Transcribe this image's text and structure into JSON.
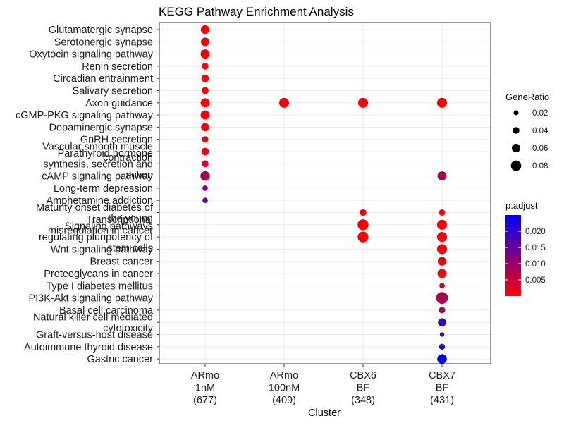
{
  "chart_data": {
    "type": "scatter",
    "title": "KEGG Pathway Enrichment Analysis",
    "xlabel": "Cluster",
    "clusters": [
      [
        "ARmo",
        "1nM",
        "(677)"
      ],
      [
        "ARmo",
        "100nM",
        "(409)"
      ],
      [
        "CBX6",
        "BF",
        "(348)"
      ],
      [
        "CBX7",
        "BF",
        "(431)"
      ]
    ],
    "pathways": [
      [
        "Glutamatergic synapse"
      ],
      [
        "Serotonergic synapse"
      ],
      [
        "Oxytocin signaling pathway"
      ],
      [
        "Renin secretion"
      ],
      [
        "Circadian entrainment"
      ],
      [
        "Salivary secretion"
      ],
      [
        "Axon guidance"
      ],
      [
        "cGMP-PKG signaling pathway"
      ],
      [
        "Dopaminergic synapse"
      ],
      [
        "GnRH secretion"
      ],
      [
        "Vascular smooth muscle",
        "contraction"
      ],
      [
        "Parathyroid hormone",
        "synthesis, secretion and",
        "action"
      ],
      [
        "cAMP signaling pathway"
      ],
      [
        "Long-term depression"
      ],
      [
        "Amphetamine addiction"
      ],
      [
        "Maturity onset diabetes of",
        "the young"
      ],
      [
        "Transcriptional",
        "misregulation in cancer"
      ],
      [
        "Signaling pathways",
        "regulating pluripotency of",
        "stem cells"
      ],
      [
        "Wnt signaling pathway"
      ],
      [
        "Breast cancer"
      ],
      [
        "Proteoglycans in cancer"
      ],
      [
        "Type I diabetes mellitus"
      ],
      [
        "PI3K-Akt signaling pathway"
      ],
      [
        "Basal cell carcinoma"
      ],
      [
        "Natural killer cell mediated",
        "cytotoxicity"
      ],
      [
        "Graft-versus-host disease"
      ],
      [
        "Autoimmune thyroid disease"
      ],
      [
        "Gastric cancer"
      ]
    ],
    "points": [
      {
        "cluster": 0,
        "pathway": 0,
        "gene_ratio": 0.06,
        "p_adjust": 0.0005
      },
      {
        "cluster": 0,
        "pathway": 1,
        "gene_ratio": 0.058,
        "p_adjust": 0.0005
      },
      {
        "cluster": 0,
        "pathway": 2,
        "gene_ratio": 0.065,
        "p_adjust": 0.0005
      },
      {
        "cluster": 0,
        "pathway": 3,
        "gene_ratio": 0.04,
        "p_adjust": 0.0005
      },
      {
        "cluster": 0,
        "pathway": 4,
        "gene_ratio": 0.048,
        "p_adjust": 0.0005
      },
      {
        "cluster": 0,
        "pathway": 5,
        "gene_ratio": 0.043,
        "p_adjust": 0.0005
      },
      {
        "cluster": 0,
        "pathway": 6,
        "gene_ratio": 0.065,
        "p_adjust": 0.0005
      },
      {
        "cluster": 0,
        "pathway": 7,
        "gene_ratio": 0.065,
        "p_adjust": 0.001
      },
      {
        "cluster": 0,
        "pathway": 8,
        "gene_ratio": 0.055,
        "p_adjust": 0.001
      },
      {
        "cluster": 0,
        "pathway": 9,
        "gene_ratio": 0.035,
        "p_adjust": 0.002
      },
      {
        "cluster": 0,
        "pathway": 10,
        "gene_ratio": 0.048,
        "p_adjust": 0.002
      },
      {
        "cluster": 0,
        "pathway": 11,
        "gene_ratio": 0.04,
        "p_adjust": 0.004
      },
      {
        "cluster": 0,
        "pathway": 12,
        "gene_ratio": 0.07,
        "p_adjust": 0.008
      },
      {
        "cluster": 0,
        "pathway": 13,
        "gene_ratio": 0.025,
        "p_adjust": 0.013
      },
      {
        "cluster": 0,
        "pathway": 14,
        "gene_ratio": 0.025,
        "p_adjust": 0.015
      },
      {
        "cluster": 1,
        "pathway": 6,
        "gene_ratio": 0.075,
        "p_adjust": 0.0005
      },
      {
        "cluster": 2,
        "pathway": 6,
        "gene_ratio": 0.075,
        "p_adjust": 0.0005
      },
      {
        "cluster": 2,
        "pathway": 15,
        "gene_ratio": 0.04,
        "p_adjust": 0.0005
      },
      {
        "cluster": 2,
        "pathway": 16,
        "gene_ratio": 0.085,
        "p_adjust": 0.0005
      },
      {
        "cluster": 2,
        "pathway": 17,
        "gene_ratio": 0.083,
        "p_adjust": 0.0005
      },
      {
        "cluster": 3,
        "pathway": 6,
        "gene_ratio": 0.075,
        "p_adjust": 0.0005
      },
      {
        "cluster": 3,
        "pathway": 12,
        "gene_ratio": 0.065,
        "p_adjust": 0.008
      },
      {
        "cluster": 3,
        "pathway": 15,
        "gene_ratio": 0.035,
        "p_adjust": 0.0005
      },
      {
        "cluster": 3,
        "pathway": 16,
        "gene_ratio": 0.075,
        "p_adjust": 0.0005
      },
      {
        "cluster": 3,
        "pathway": 17,
        "gene_ratio": 0.075,
        "p_adjust": 0.0005
      },
      {
        "cluster": 3,
        "pathway": 18,
        "gene_ratio": 0.075,
        "p_adjust": 0.0005
      },
      {
        "cluster": 3,
        "pathway": 19,
        "gene_ratio": 0.06,
        "p_adjust": 0.0005
      },
      {
        "cluster": 3,
        "pathway": 20,
        "gene_ratio": 0.065,
        "p_adjust": 0.0008
      },
      {
        "cluster": 3,
        "pathway": 21,
        "gene_ratio": 0.025,
        "p_adjust": 0.005
      },
      {
        "cluster": 3,
        "pathway": 22,
        "gene_ratio": 0.095,
        "p_adjust": 0.008
      },
      {
        "cluster": 3,
        "pathway": 23,
        "gene_ratio": 0.035,
        "p_adjust": 0.009
      },
      {
        "cluster": 3,
        "pathway": 24,
        "gene_ratio": 0.055,
        "p_adjust": 0.02
      },
      {
        "cluster": 3,
        "pathway": 25,
        "gene_ratio": 0.015,
        "p_adjust": 0.019
      },
      {
        "cluster": 3,
        "pathway": 26,
        "gene_ratio": 0.03,
        "p_adjust": 0.022
      },
      {
        "cluster": 3,
        "pathway": 27,
        "gene_ratio": 0.07,
        "p_adjust": 0.025
      }
    ],
    "size_legend": {
      "title": "GeneRatio",
      "breaks": [
        0.02,
        0.04,
        0.06,
        0.08
      ],
      "labels": [
        "0.02",
        "0.04",
        "0.06",
        "0.08"
      ]
    },
    "color_legend": {
      "title": "p.adjust",
      "low_color": "#ff0000",
      "high_color": "#0000ff",
      "range": [
        0,
        0.025
      ],
      "breaks": [
        0.005,
        0.01,
        0.015,
        0.02
      ],
      "labels": [
        "0.005",
        "0.010",
        "0.015",
        "0.020"
      ]
    },
    "grid": true,
    "legend_position": "right"
  }
}
